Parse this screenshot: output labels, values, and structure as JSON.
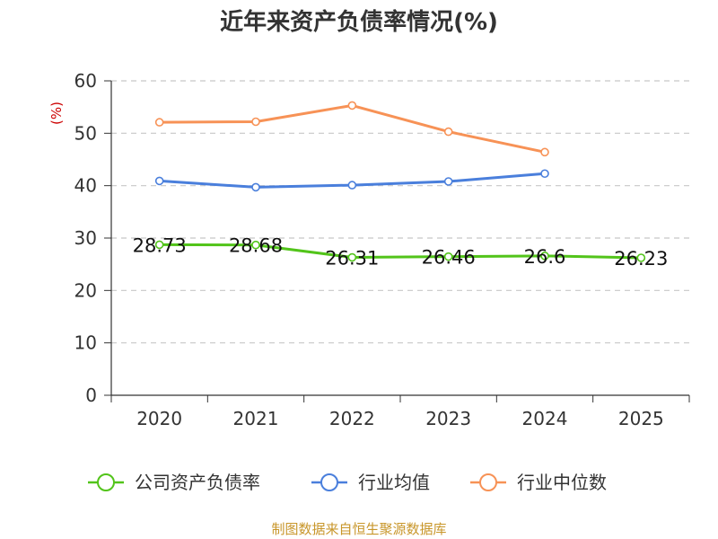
{
  "chart_data": {
    "type": "line",
    "title": "近年来资产负债率情况(%)",
    "ylabel": "(%)",
    "xlabel": "",
    "ylim": [
      0,
      60
    ],
    "yticks": [
      0,
      10,
      20,
      30,
      40,
      50,
      60
    ],
    "categories": [
      "2020",
      "2021",
      "2022",
      "2023",
      "2024",
      "2025"
    ],
    "grid": true,
    "legend_position": "bottom",
    "series": [
      {
        "name": "公司资产负债率",
        "color": "#52c41a",
        "values": [
          28.73,
          28.68,
          26.31,
          26.46,
          26.6,
          26.23
        ],
        "data_labels": [
          "28.73",
          "28.68",
          "26.31",
          "26.46",
          "26.6",
          "26.23"
        ]
      },
      {
        "name": "行业均值",
        "color": "#4a7fdc",
        "values": [
          40.9,
          39.7,
          40.1,
          40.8,
          42.3,
          null
        ]
      },
      {
        "name": "行业中位数",
        "color": "#f79256",
        "values": [
          52.1,
          52.2,
          55.3,
          50.3,
          46.4,
          null
        ]
      }
    ],
    "source": "制图数据来自恒生聚源数据库"
  }
}
